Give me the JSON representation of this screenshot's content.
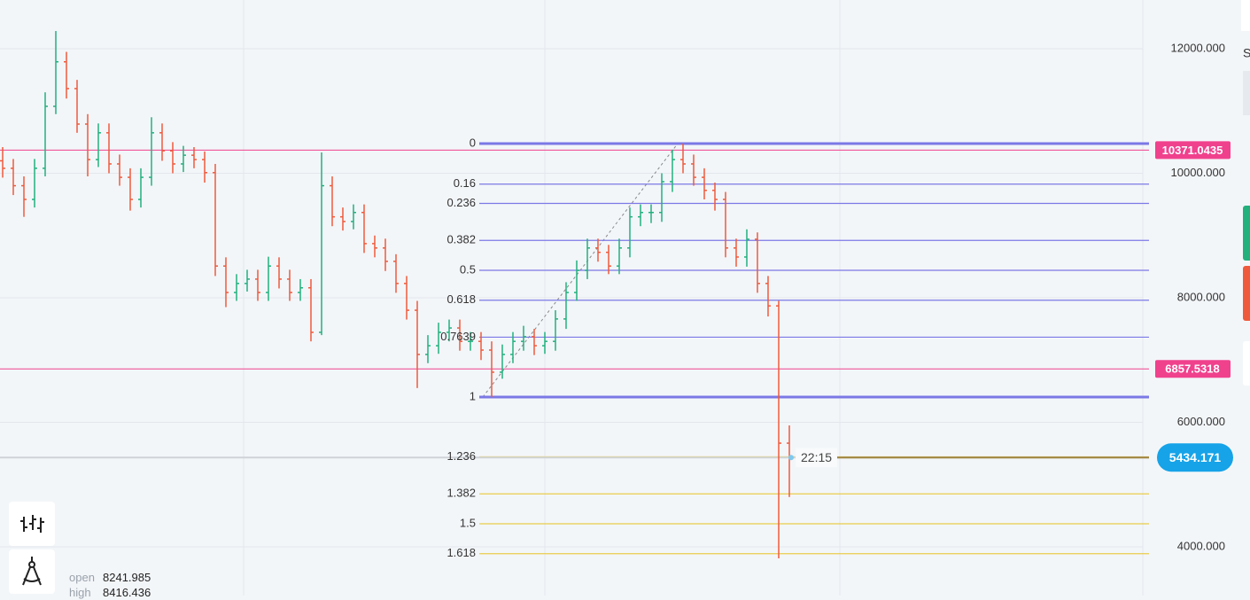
{
  "chart_data": {
    "type": "ohlc",
    "open": [
      10200,
      10080,
      9800,
      9580,
      10080,
      11075,
      11790,
      11360,
      10790,
      10220,
      10650,
      10150,
      9935,
      9580,
      9935,
      10650,
      10360,
      10150,
      10290,
      10220,
      10010,
      8510,
      8085,
      8230,
      8300,
      8085,
      8510,
      8300,
      8085,
      8160,
      7445,
      9800,
      9300,
      9225,
      9370,
      8870,
      8800,
      8585,
      8230,
      7800,
      7090,
      7230,
      7445,
      7515,
      7300,
      7300,
      7160,
      6805,
      7090,
      7300,
      7375,
      7230,
      7300,
      7660,
      8085,
      8440,
      8800,
      8730,
      8510,
      8800,
      9300,
      9370,
      9370,
      9865,
      10220,
      10150,
      9935,
      9725,
      9580,
      8800,
      8655,
      8940,
      8230,
      7870,
      5665
    ],
    "high": [
      10420,
      10230,
      9950,
      10230,
      11300,
      12285,
      11950,
      11500,
      10950,
      10800,
      10800,
      10300,
      10080,
      10080,
      10900,
      10800,
      10500,
      10440,
      10420,
      10350,
      10150,
      8650,
      8380,
      8450,
      8450,
      8660,
      8650,
      8450,
      8300,
      8300,
      10335,
      9950,
      9450,
      9500,
      9500,
      9000,
      8950,
      8700,
      8350,
      7950,
      7400,
      7600,
      7650,
      7650,
      7450,
      7450,
      7300,
      7250,
      7450,
      7550,
      7500,
      7450,
      7800,
      8250,
      8600,
      8950,
      8950,
      8850,
      8950,
      9450,
      9500,
      9500,
      10000,
      10380,
      10477,
      10300,
      10080,
      9850,
      9700,
      8950,
      9100,
      9050,
      8350,
      7950,
      5950
    ],
    "low": [
      9930,
      9650,
      9300,
      9450,
      9950,
      10950,
      11200,
      10650,
      9950,
      10100,
      10000,
      9800,
      9400,
      9450,
      9800,
      10200,
      10000,
      10020,
      10080,
      9850,
      8350,
      7850,
      7950,
      8100,
      7950,
      7950,
      8150,
      7950,
      7950,
      7300,
      7400,
      9150,
      9080,
      9100,
      8720,
      8650,
      8430,
      8080,
      7650,
      6550,
      6950,
      7100,
      7300,
      7150,
      7150,
      7000,
      6406,
      6700,
      6950,
      7150,
      7080,
      7100,
      7150,
      7500,
      7950,
      8300,
      8580,
      8380,
      8380,
      8650,
      9150,
      9200,
      9220,
      9700,
      10000,
      9800,
      9580,
      9400,
      8650,
      8500,
      8500,
      8080,
      7700,
      3815,
      4800
    ],
    "close": [
      10080,
      9800,
      9580,
      10080,
      11075,
      11790,
      11360,
      10790,
      10220,
      10650,
      10150,
      9935,
      9580,
      9935,
      10650,
      10360,
      10150,
      10290,
      10220,
      10010,
      8510,
      8085,
      8230,
      8300,
      8085,
      8510,
      8300,
      8085,
      8160,
      7445,
      9800,
      9300,
      9225,
      9370,
      8870,
      8800,
      8585,
      8230,
      7800,
      7090,
      7230,
      7445,
      7515,
      7300,
      7300,
      7160,
      6805,
      7090,
      7300,
      7375,
      7230,
      7300,
      7660,
      8085,
      8440,
      8800,
      8730,
      8510,
      8800,
      9300,
      9370,
      9370,
      9865,
      10220,
      10150,
      9935,
      9725,
      9580,
      8800,
      8655,
      8940,
      8230,
      7870,
      5665,
      5434.171
    ],
    "up_color": "#22b07d",
    "down_color": "#ef5a3c",
    "ylim": [
      3217,
      12783
    ],
    "yticks": [
      {
        "value": 4000,
        "label": "4000.000"
      },
      {
        "value": 6000,
        "label": "6000.000"
      },
      {
        "value": 8000,
        "label": "8000.000"
      },
      {
        "value": 10000,
        "label": "10000.000"
      },
      {
        "value": 12000,
        "label": "12000.000"
      }
    ],
    "grid": true,
    "fib": {
      "high": 10477,
      "low": 6406,
      "levels": [
        0,
        0.16,
        0.236,
        0.382,
        0.5,
        0.618,
        0.7639,
        1,
        1.236,
        1.382,
        1.5,
        1.618
      ],
      "color": "#7b78e6",
      "extension_color": "#e8cc4a"
    },
    "price_lines": [
      {
        "value": 10371.0435,
        "color": "#f0418d"
      },
      {
        "value": 6857.5318,
        "color": "#f0418d"
      }
    ],
    "current_price": {
      "value": 5434.171,
      "timer": "22:15",
      "color": "#16a3e8"
    }
  },
  "legend": {
    "open": {
      "label": "open",
      "value": 8241.985
    },
    "high": {
      "label": "high",
      "value": 8416.436
    }
  },
  "side_panel": {
    "letter": "S"
  }
}
